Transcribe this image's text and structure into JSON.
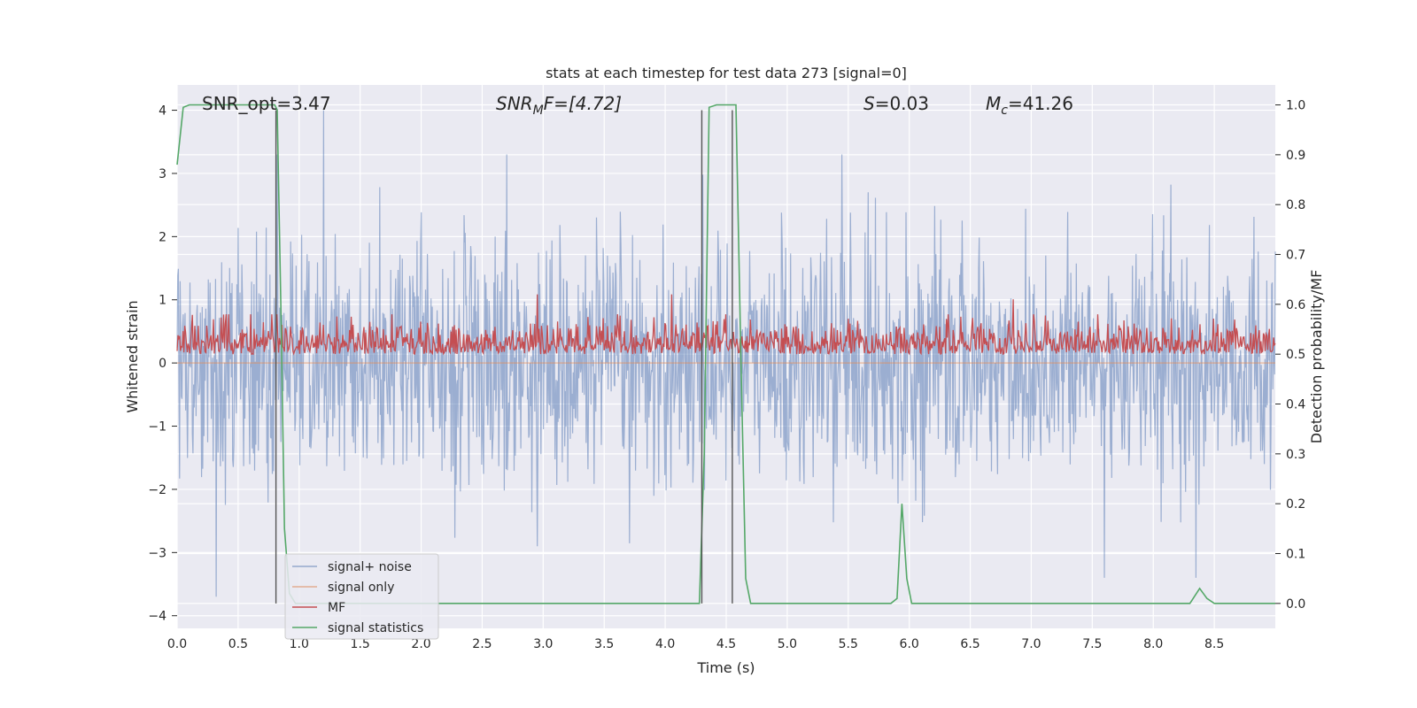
{
  "chart_data": {
    "type": "line",
    "title": "stats at each timestep for test data 273 [signal=0]",
    "xlabel": "Time (s)",
    "ylabel": "Whitened strain",
    "ylabel_right": "Detection probability/MF",
    "xlim": [
      0.0,
      9.0
    ],
    "ylim": [
      -4.2,
      4.4
    ],
    "ylim_right": [
      -0.05,
      1.04
    ],
    "xticks": [
      0.0,
      0.5,
      1.0,
      1.5,
      2.0,
      2.5,
      3.0,
      3.5,
      4.0,
      4.5,
      5.0,
      5.5,
      6.0,
      6.5,
      7.0,
      7.5,
      8.0,
      8.5
    ],
    "xtick_labels": [
      "0.0",
      "0.5",
      "1.0",
      "1.5",
      "2.0",
      "2.5",
      "3.0",
      "3.5",
      "4.0",
      "4.5",
      "5.0",
      "5.5",
      "6.0",
      "6.5",
      "7.0",
      "7.5",
      "8.0",
      "8.5"
    ],
    "yticks": [
      -4,
      -3,
      -2,
      -1,
      0,
      1,
      2,
      3,
      4
    ],
    "ytick_labels": [
      "−4",
      "−3",
      "−2",
      "−1",
      "0",
      "1",
      "2",
      "3",
      "4"
    ],
    "yticks_right": [
      0.0,
      0.1,
      0.2,
      0.3,
      0.4,
      0.5,
      0.6,
      0.7,
      0.8,
      0.9,
      1.0
    ],
    "ytick_labels_right": [
      "0.0",
      "0.1",
      "0.2",
      "0.3",
      "0.4",
      "0.5",
      "0.6",
      "0.7",
      "0.8",
      "0.9",
      "1.0"
    ],
    "grid": true,
    "legend_position": "lower-left",
    "annotations": {
      "snr_opt": "SNR_opt=3.47",
      "snr_mf_main": "SNR",
      "snr_mf_sub": "M",
      "snr_mf_rest": "F=[4.72]",
      "s_main": "S",
      "s_rest": "=0.03",
      "mc_main": "M",
      "mc_sub": "c",
      "mc_rest": "=41.26"
    },
    "vlines_x": [
      0.81,
      4.3,
      4.55
    ],
    "series": [
      {
        "name": "signal+ noise",
        "color": "#4c72b0",
        "axis": "left",
        "kind": "noise",
        "sample_rate_points": 1800,
        "envelope_abs": 1.5,
        "peak_values": [
          {
            "x": 1.2,
            "y": 4.0
          },
          {
            "x": 0.82,
            "y": 3.3
          },
          {
            "x": 2.7,
            "y": 3.3
          },
          {
            "x": 5.45,
            "y": 3.3
          },
          {
            "x": 0.32,
            "y": -3.7
          },
          {
            "x": 2.95,
            "y": -2.9
          },
          {
            "x": 8.35,
            "y": -3.4
          },
          {
            "x": 7.6,
            "y": -3.4
          }
        ]
      },
      {
        "name": "signal only",
        "color": "#dd8452",
        "axis": "left",
        "kind": "flat",
        "x": [
          0.0,
          9.0
        ],
        "y": [
          0.0,
          0.0
        ]
      },
      {
        "name": "MF",
        "color": "#c44e52",
        "axis": "right",
        "kind": "mf",
        "baseline": 0.52,
        "band": [
          0.5,
          0.58
        ],
        "peak_values": [
          {
            "x": 2.95,
            "y": 0.62
          },
          {
            "x": 4.05,
            "y": 0.62
          },
          {
            "x": 6.85,
            "y": 0.61
          }
        ]
      },
      {
        "name": "signal statistics",
        "color": "#55a868",
        "axis": "right",
        "kind": "line",
        "x": [
          0.0,
          0.05,
          0.1,
          0.2,
          0.8,
          0.82,
          0.85,
          0.88,
          0.92,
          0.97,
          4.28,
          4.32,
          4.36,
          4.42,
          4.5,
          4.58,
          4.62,
          4.66,
          4.7,
          5.85,
          5.9,
          5.94,
          5.98,
          6.02,
          6.06,
          8.3,
          8.38,
          8.44,
          8.5,
          9.0
        ],
        "y": [
          0.88,
          0.995,
          1.0,
          1.0,
          1.0,
          0.99,
          0.6,
          0.15,
          0.02,
          0.0,
          0.0,
          0.3,
          0.995,
          1.0,
          1.0,
          1.0,
          0.5,
          0.05,
          0.0,
          0.0,
          0.01,
          0.2,
          0.05,
          0.0,
          0.0,
          0.0,
          0.03,
          0.01,
          0.0,
          0.0
        ]
      }
    ]
  }
}
